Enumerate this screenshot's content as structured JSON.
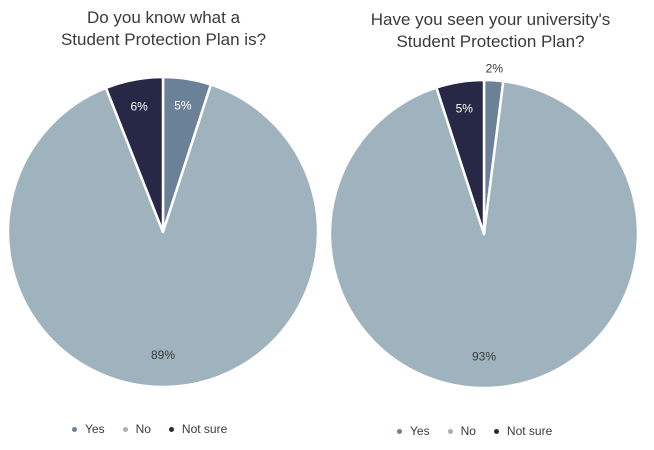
{
  "legend": [
    {
      "label": "Yes",
      "color": "#6b8197"
    },
    {
      "label": "No",
      "color": "#9fb3be"
    },
    {
      "label": "Not sure",
      "color": "#262846"
    }
  ],
  "chart_data": [
    {
      "type": "pie",
      "title_lines": [
        "Do you know what a",
        "Student Protection Plan is?"
      ],
      "slices": [
        {
          "label": "Yes",
          "value": 5,
          "display": "5%",
          "color": "#6b8197"
        },
        {
          "label": "No",
          "value": 89,
          "display": "89%",
          "color": "#9fb3be"
        },
        {
          "label": "Not sure",
          "value": 6,
          "display": "6%",
          "color": "#262846"
        }
      ],
      "legend_position": "bottom"
    },
    {
      "type": "pie",
      "title_lines": [
        "Have you seen your university's",
        "Student Protection Plan?"
      ],
      "slices": [
        {
          "label": "Yes",
          "value": 2,
          "display": "2%",
          "color": "#6b8197"
        },
        {
          "label": "No",
          "value": 93,
          "display": "93%",
          "color": "#9fb3be"
        },
        {
          "label": "Not sure",
          "value": 5,
          "display": "5%",
          "color": "#262846"
        }
      ],
      "legend_position": "bottom"
    }
  ]
}
